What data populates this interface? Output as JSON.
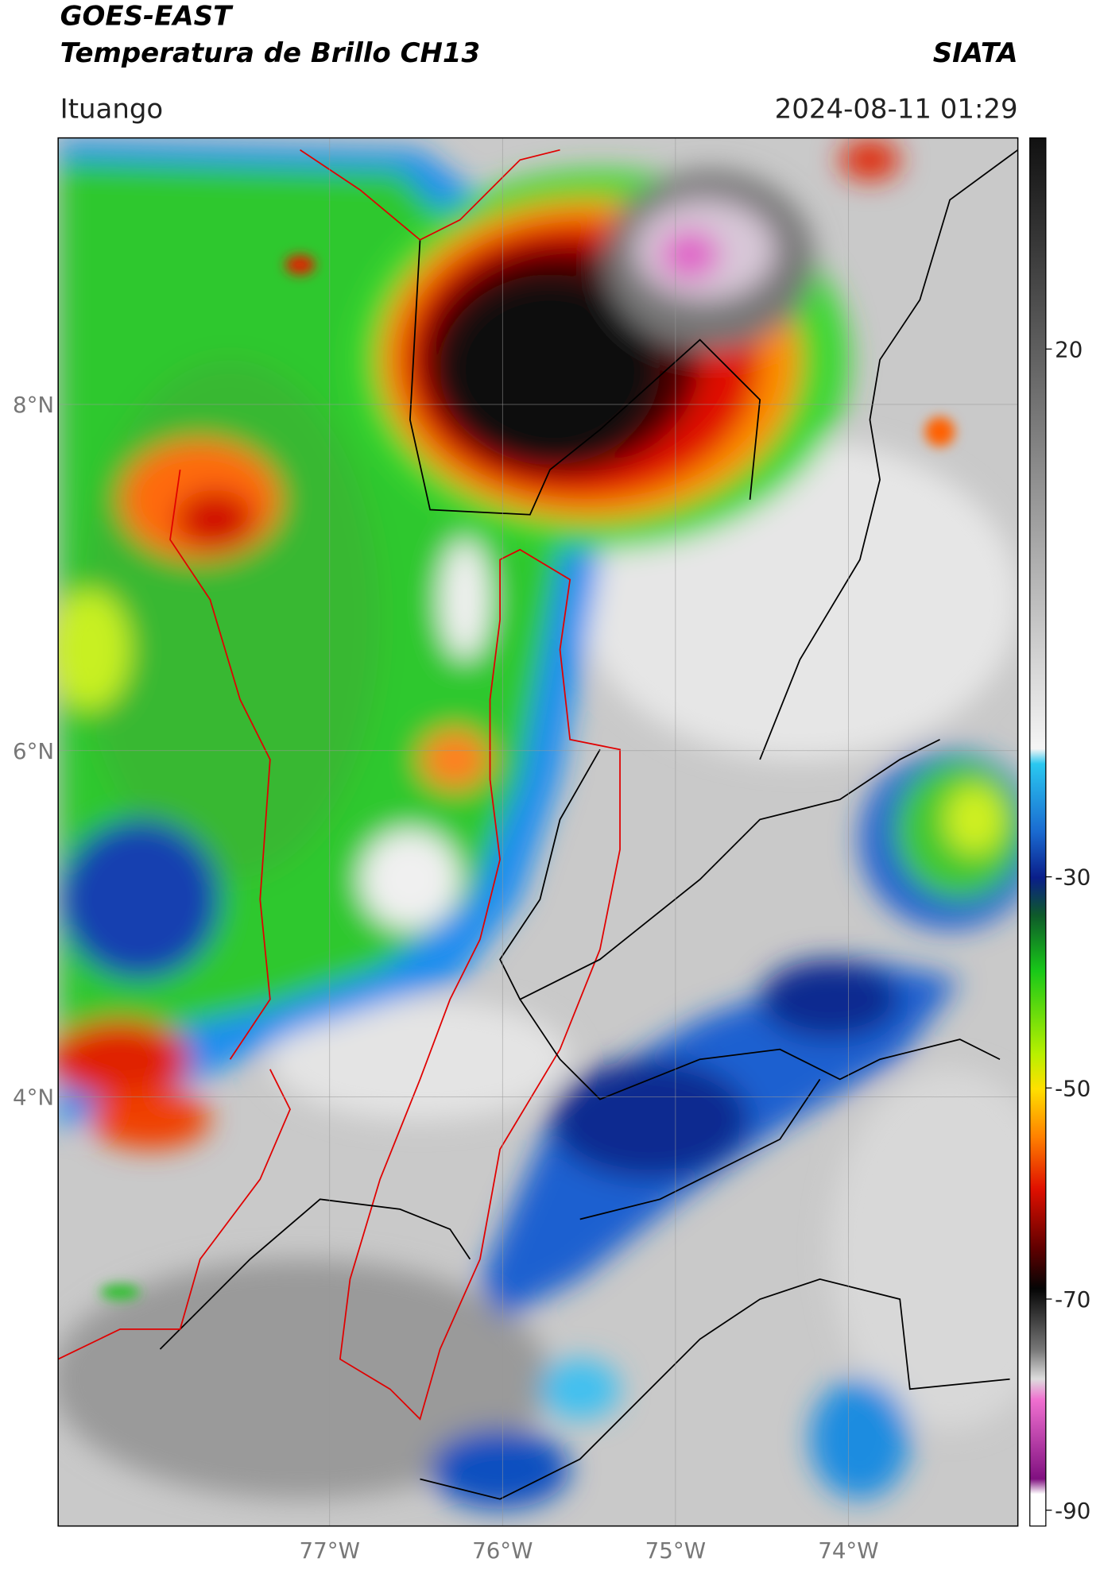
{
  "header": {
    "title": "GOES-EAST",
    "subtitle": "Temperatura de Brillo CH13",
    "brand": "SIATA",
    "region": "Ituango",
    "datetime": "2024-08-11 01:29"
  },
  "map": {
    "lon_lim": [
      -78.57,
      -73.02
    ],
    "lat_lim": [
      1.52,
      9.54
    ],
    "lat_ticks": [
      {
        "value": 8,
        "label": "8°N"
      },
      {
        "value": 6,
        "label": "6°N"
      },
      {
        "value": 4,
        "label": "4°N"
      }
    ],
    "lon_ticks": [
      {
        "value": -77,
        "label": "77°W"
      },
      {
        "value": -76,
        "label": "76°W"
      },
      {
        "value": -75,
        "label": "75°W"
      },
      {
        "value": -74,
        "label": "74°W"
      }
    ]
  },
  "colorbar": {
    "lim": [
      -91.5,
      40
    ],
    "ticks": [
      20,
      -30,
      -50,
      -70,
      -90
    ]
  }
}
